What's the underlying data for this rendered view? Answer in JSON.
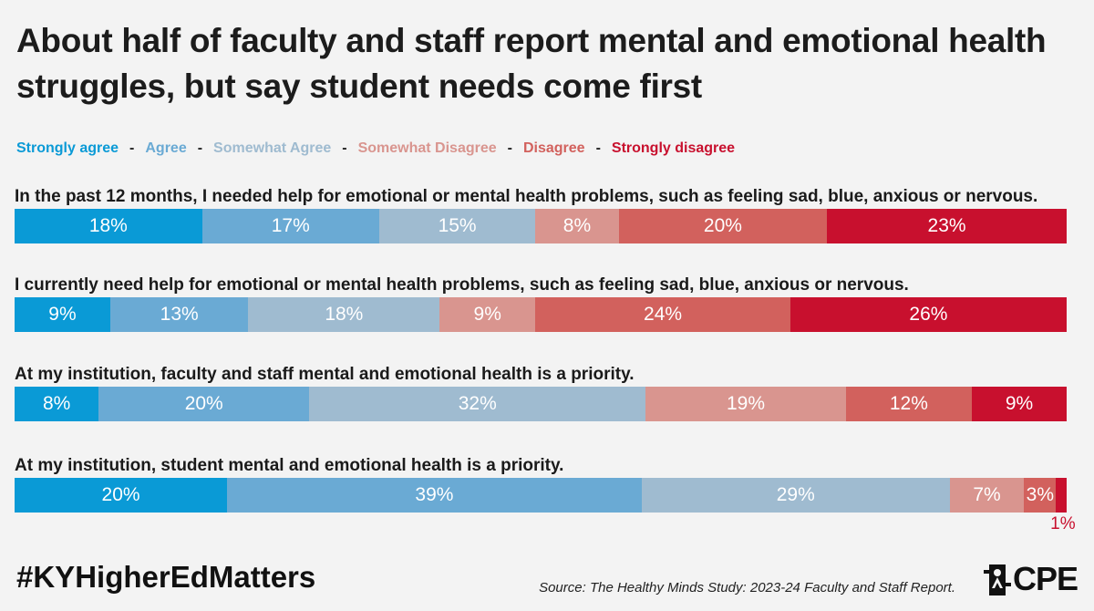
{
  "title": "About half of faculty and staff report mental and emotional health struggles, but say student needs come first",
  "legend": [
    {
      "label": "Strongly agree",
      "color": "#0a9ad6"
    },
    {
      "label": "Agree",
      "color": "#6aaad4"
    },
    {
      "label": "Somewhat Agree",
      "color": "#9fbbd0"
    },
    {
      "label": "Somewhat Disagree",
      "color": "#d9958f"
    },
    {
      "label": "Disagree",
      "color": "#d2615d"
    },
    {
      "label": "Strongly disagree",
      "color": "#c8102e"
    }
  ],
  "legend_separator": "-",
  "chart_data": {
    "type": "bar",
    "orientation": "horizontal",
    "stacked": true,
    "title": "About half of faculty and staff report mental and emotional health struggles, but say student needs come first",
    "categories": [
      "In the past 12 months, I needed help for emotional or mental health problems, such as feeling sad, blue, anxious or nervous.",
      "I currently need help for emotional or mental health problems, such as feeling sad, blue, anxious or nervous.",
      "At my institution, faculty and staff mental and emotional health is a priority.",
      "At my institution, student mental and emotional health is a priority."
    ],
    "series": [
      {
        "name": "Strongly agree",
        "color": "#0a9ad6",
        "values": [
          18,
          9,
          8,
          20
        ]
      },
      {
        "name": "Agree",
        "color": "#6aaad4",
        "values": [
          17,
          13,
          20,
          39
        ]
      },
      {
        "name": "Somewhat Agree",
        "color": "#9fbbd0",
        "values": [
          15,
          18,
          32,
          29
        ]
      },
      {
        "name": "Somewhat Disagree",
        "color": "#d9958f",
        "values": [
          8,
          9,
          19,
          7
        ]
      },
      {
        "name": "Disagree",
        "color": "#d2615d",
        "values": [
          20,
          24,
          12,
          3
        ]
      },
      {
        "name": "Strongly disagree",
        "color": "#c8102e",
        "values": [
          23,
          26,
          9,
          1
        ]
      }
    ],
    "value_suffix": "%",
    "legend_position": "top",
    "grid": false
  },
  "footer": {
    "hashtag": "#KYHigherEdMatters",
    "source": "Source: The Healthy Minds Study: 2023-24 Faculty and Staff Report.",
    "logo_text": "CPE"
  }
}
